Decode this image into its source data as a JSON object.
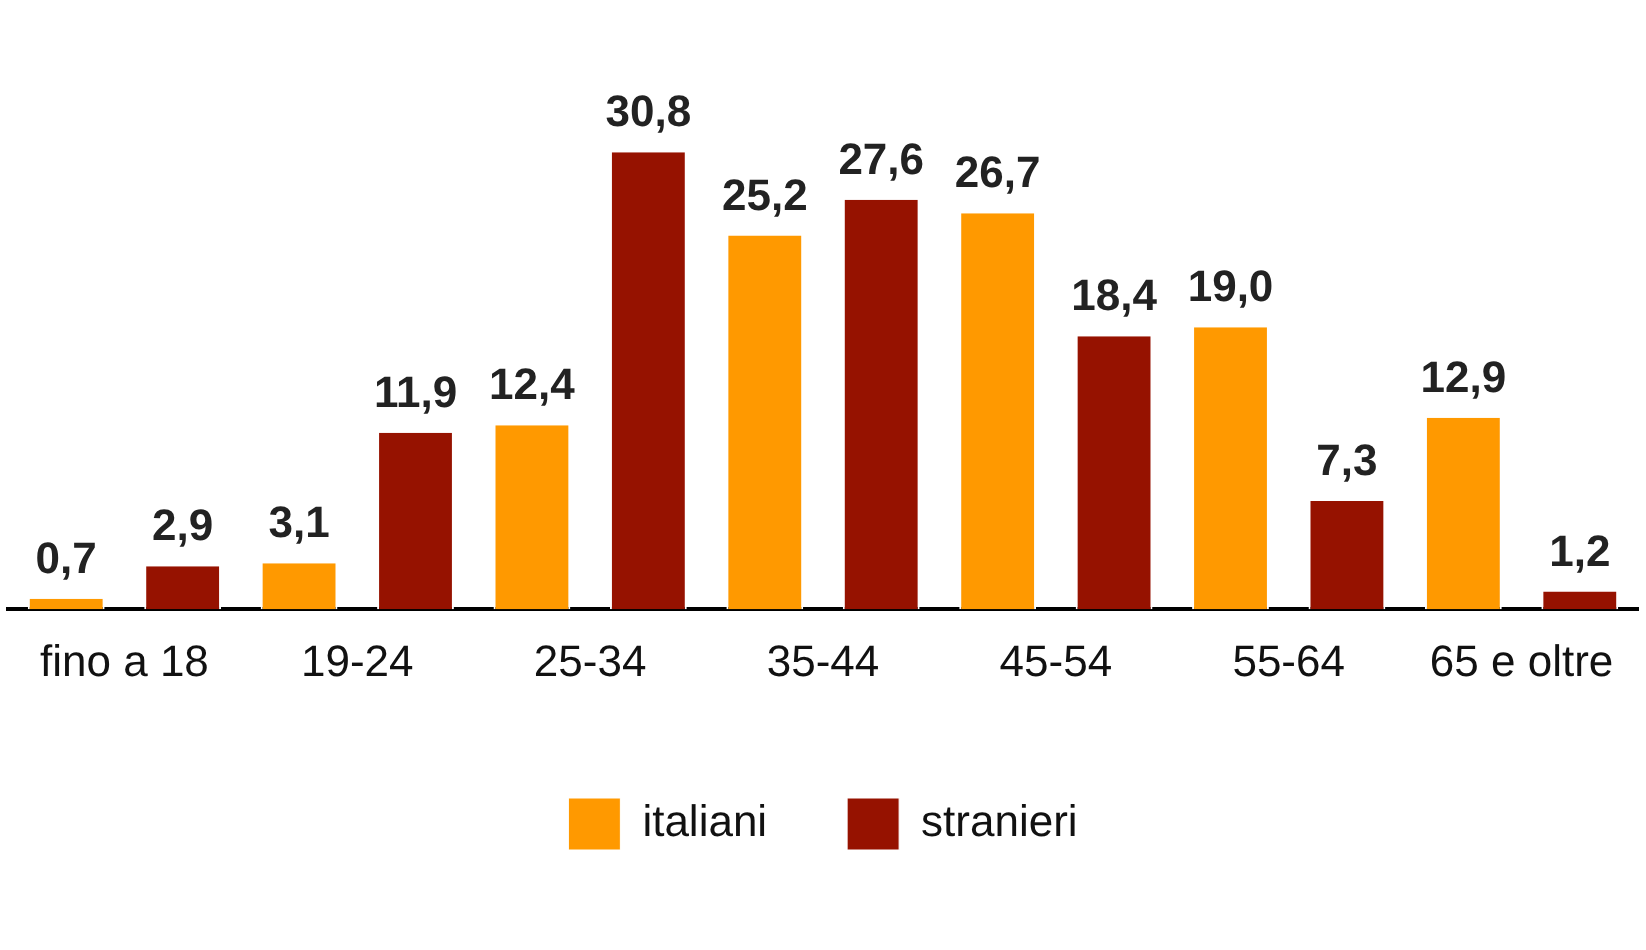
{
  "chart_data": {
    "type": "bar",
    "categories": [
      "fino a 18",
      "19-24",
      "25-34",
      "35-44",
      "45-54",
      "55-64",
      "65 e oltre"
    ],
    "series": [
      {
        "name": "italiani",
        "color": "#ff9900",
        "values": [
          0.7,
          3.1,
          12.4,
          25.2,
          26.7,
          19.0,
          12.9
        ],
        "value_labels": [
          "0,7",
          "3,1",
          "12,4",
          "25,2",
          "26,7",
          "19,0",
          "12,9"
        ]
      },
      {
        "name": "stranieri",
        "color": "#961200",
        "values": [
          2.9,
          11.9,
          30.8,
          27.6,
          18.4,
          7.3,
          1.2
        ],
        "value_labels": [
          "2,9",
          "11,9",
          "30,8",
          "27,6",
          "18,4",
          "7,3",
          "1,2"
        ]
      }
    ],
    "grid": false,
    "legend": "bottom",
    "tick_labels": "x"
  }
}
